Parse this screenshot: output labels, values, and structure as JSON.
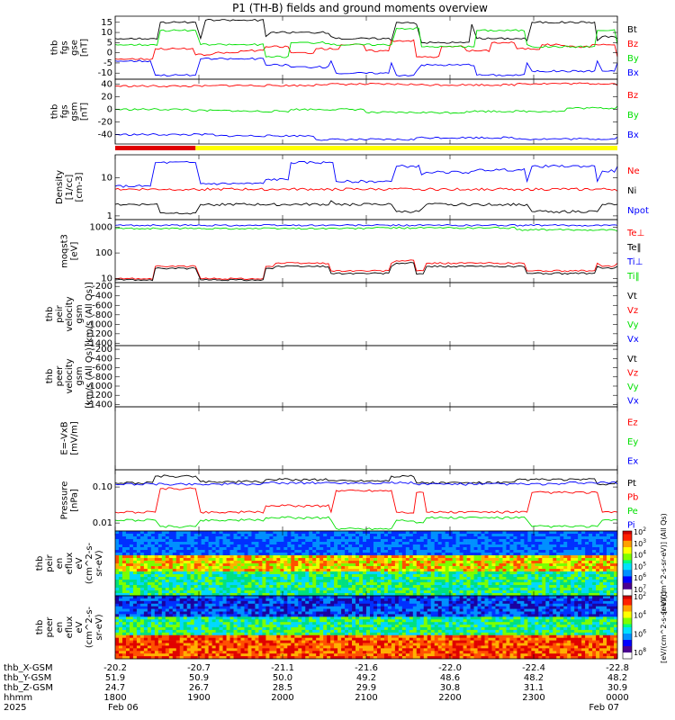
{
  "title": "P1 (TH-B) fields and ground moments overview",
  "colors": {
    "black": "#000000",
    "red": "#ff0000",
    "green": "#00e000",
    "blue": "#0000ff"
  },
  "chart_data": [
    {
      "type": "line",
      "ylabel": [
        "thb",
        "fgs",
        "gse",
        "[nT]"
      ],
      "yticks": [
        "15",
        "10",
        "5",
        "0",
        "-5",
        "-10"
      ],
      "ylim": [
        -13,
        18
      ],
      "legend": [
        {
          "text": "Bt",
          "color": "black"
        },
        {
          "text": "Bz",
          "color": "red"
        },
        {
          "text": "By",
          "color": "green"
        },
        {
          "text": "Bx",
          "color": "blue"
        }
      ],
      "series": [
        {
          "name": "Bt",
          "color": "black",
          "x": [
            0,
            0.07,
            0.09,
            0.16,
            0.17,
            0.18,
            0.3,
            0.31,
            0.43,
            0.44,
            0.55,
            0.56,
            0.6,
            0.61,
            0.71,
            0.72,
            0.82,
            0.83,
            0.96,
            0.97,
            1.0
          ],
          "values": [
            7,
            7,
            15,
            15,
            7,
            16,
            8,
            10,
            8,
            7,
            6,
            15,
            14,
            5,
            14,
            7,
            6,
            15,
            6,
            8,
            7
          ]
        },
        {
          "name": "Bz",
          "color": "red",
          "x": [
            0,
            0.08,
            0.16,
            0.2,
            0.25,
            0.3,
            0.35,
            0.4,
            0.45,
            0.5,
            0.55,
            0.6,
            0.65,
            0.7,
            0.75,
            0.8,
            0.85,
            0.9,
            0.95,
            1.0
          ],
          "values": [
            -3,
            2,
            -1,
            0,
            1,
            3,
            0,
            2,
            4,
            1,
            6,
            -2,
            3,
            1,
            5,
            2,
            4,
            3,
            4,
            -2
          ]
        },
        {
          "name": "By",
          "color": "green",
          "x": [
            0,
            0.07,
            0.09,
            0.16,
            0.17,
            0.25,
            0.3,
            0.35,
            0.43,
            0.55,
            0.56,
            0.61,
            0.72,
            0.82,
            0.83,
            0.96,
            1.0
          ],
          "values": [
            4,
            4,
            11,
            11,
            4,
            4,
            -2,
            5,
            4,
            4,
            12,
            3,
            11,
            4,
            3,
            11,
            4
          ]
        },
        {
          "name": "Bx",
          "color": "blue",
          "x": [
            0,
            0.07,
            0.08,
            0.16,
            0.17,
            0.3,
            0.35,
            0.43,
            0.44,
            0.55,
            0.56,
            0.6,
            0.61,
            0.72,
            0.82,
            0.83,
            0.96,
            0.97,
            1.0
          ],
          "values": [
            -4,
            -4,
            -11,
            -11,
            -3,
            -6,
            -7,
            -4,
            -10,
            -5,
            -11,
            -9,
            -6,
            -11,
            -5,
            -9,
            -4,
            -9,
            -5
          ]
        }
      ]
    },
    {
      "type": "line",
      "ylabel": [
        "thb",
        "fgs",
        "gsm",
        "[nT]"
      ],
      "yticks": [
        "40",
        "20",
        "0",
        "-20",
        "-40"
      ],
      "ylim": [
        -55,
        48
      ],
      "legend": [
        {
          "text": "Bz",
          "color": "red"
        },
        {
          "text": "By",
          "color": "green"
        },
        {
          "text": "Bx",
          "color": "blue"
        }
      ],
      "series": [
        {
          "name": "Bz",
          "color": "red",
          "x": [
            0,
            0.2,
            0.4,
            0.6,
            0.8,
            1.0
          ],
          "values": [
            37,
            38,
            40,
            39,
            41,
            38
          ]
        },
        {
          "name": "By",
          "color": "green",
          "x": [
            0,
            0.15,
            0.25,
            0.35,
            0.5,
            0.7,
            0.9,
            1.0
          ],
          "values": [
            0,
            -2,
            -3,
            0,
            -5,
            -3,
            2,
            5
          ]
        },
        {
          "name": "Bx",
          "color": "blue",
          "x": [
            0,
            0.2,
            0.4,
            0.6,
            0.8,
            1.0
          ],
          "values": [
            -40,
            -42,
            -48,
            -45,
            -47,
            -44
          ]
        }
      ]
    },
    {
      "type": "line",
      "ylabel": [
        "Density",
        "[1/cc]",
        "[cm-3]"
      ],
      "yticks": [
        "10",
        "1"
      ],
      "ylog": true,
      "ylim": [
        0.8,
        40
      ],
      "legend": [
        {
          "text": "Ne",
          "color": "red"
        },
        {
          "text": "Ni",
          "color": "black"
        },
        {
          "text": "Npot",
          "color": "blue"
        }
      ],
      "series": [
        {
          "name": "Ni",
          "color": "black",
          "x": [
            0,
            0.07,
            0.09,
            0.16,
            0.17,
            0.43,
            0.44,
            0.55,
            0.56,
            0.61,
            0.62,
            0.82,
            0.83,
            0.96,
            0.97,
            1.0
          ],
          "values": [
            2,
            2,
            1.2,
            1.2,
            2,
            2.5,
            2,
            2,
            1.3,
            1.5,
            2,
            2,
            1.3,
            1.3,
            2,
            2
          ]
        },
        {
          "name": "Ne",
          "color": "red",
          "x": [
            0,
            0.2,
            0.4,
            0.6,
            0.8,
            1.0
          ],
          "values": [
            5,
            5,
            5,
            5,
            5,
            4.5
          ]
        },
        {
          "name": "Npot",
          "color": "blue",
          "x": [
            0,
            0.07,
            0.08,
            0.16,
            0.17,
            0.3,
            0.35,
            0.42,
            0.44,
            0.55,
            0.56,
            0.61,
            0.62,
            0.72,
            0.82,
            0.83,
            0.96,
            0.97,
            1.0
          ],
          "values": [
            6,
            6,
            25,
            25,
            7,
            9,
            25,
            25,
            8,
            8,
            20,
            12,
            14,
            16,
            8,
            20,
            8,
            15,
            20
          ]
        }
      ]
    },
    {
      "type": "line",
      "ylabel": [
        "moqst3",
        "[eV]"
      ],
      "yticks": [
        "1000",
        "100",
        "10"
      ],
      "ylog": true,
      "ylim": [
        7,
        2000
      ],
      "legend": [
        {
          "text": "Te⊥",
          "color": "red"
        },
        {
          "text": "Te‖",
          "color": "black"
        },
        {
          "text": "Ti⊥",
          "color": "blue"
        },
        {
          "text": "Ti‖",
          "color": "green"
        }
      ],
      "series": [
        {
          "name": "Ti⊥",
          "color": "blue",
          "x": [
            0,
            0.5,
            1.0
          ],
          "values": [
            1200,
            1200,
            1200
          ]
        },
        {
          "name": "Ti‖",
          "color": "green",
          "x": [
            0,
            0.5,
            0.8,
            1.0
          ],
          "values": [
            900,
            950,
            800,
            700
          ]
        },
        {
          "name": "Te⊥",
          "color": "red",
          "x": [
            0,
            0.08,
            0.16,
            0.17,
            0.3,
            0.32,
            0.43,
            0.55,
            0.56,
            0.6,
            0.62,
            0.82,
            0.96,
            0.97,
            1.0
          ],
          "values": [
            10,
            30,
            30,
            10,
            30,
            40,
            20,
            40,
            50,
            20,
            40,
            20,
            40,
            30,
            40
          ]
        },
        {
          "name": "Te‖",
          "color": "black",
          "x": [
            0,
            0.08,
            0.16,
            0.17,
            0.3,
            0.32,
            0.43,
            0.55,
            0.56,
            0.6,
            0.62,
            0.82,
            0.96,
            0.97,
            1.0
          ],
          "values": [
            9,
            25,
            25,
            9,
            25,
            30,
            16,
            30,
            40,
            15,
            30,
            16,
            30,
            25,
            30
          ]
        }
      ]
    },
    {
      "type": "line",
      "ylabel": [
        "thb",
        "peir",
        "velocity",
        "gsm",
        "[km/s (All Qs)]"
      ],
      "yticks": [
        "-200",
        "-400",
        "-600",
        "-800",
        "-1000",
        "-1200",
        "-1400"
      ],
      "ylim": [
        -1450,
        -120
      ],
      "legend": [
        {
          "text": "Vt",
          "color": "black"
        },
        {
          "text": "Vz",
          "color": "red"
        },
        {
          "text": "Vy",
          "color": "green"
        },
        {
          "text": "Vx",
          "color": "blue"
        }
      ],
      "series": []
    },
    {
      "type": "line",
      "ylabel": [
        "thb",
        "peer",
        "velocity",
        "gsm",
        "[km/s (All Qs)]"
      ],
      "yticks": [
        "-200",
        "-400",
        "-600",
        "-800",
        "-1000",
        "-1200",
        "-1400"
      ],
      "ylim": [
        -1450,
        -120
      ],
      "legend": [
        {
          "text": "Vt",
          "color": "black"
        },
        {
          "text": "Vz",
          "color": "red"
        },
        {
          "text": "Vy",
          "color": "green"
        },
        {
          "text": "Vx",
          "color": "blue"
        }
      ],
      "series": []
    },
    {
      "type": "line",
      "ylabel": [
        "E=-VxB",
        "[mV/m]"
      ],
      "yticks": [],
      "legend": [
        {
          "text": "Ez",
          "color": "red"
        },
        {
          "text": "Ey",
          "color": "green"
        },
        {
          "text": "Ex",
          "color": "blue"
        }
      ],
      "series": []
    },
    {
      "type": "line",
      "ylabel": [
        "Pressure",
        "[nPa]"
      ],
      "yticks": [
        "0.10",
        "0.01"
      ],
      "ylog": true,
      "ylim": [
        0.006,
        0.3
      ],
      "legend": [
        {
          "text": "Pt",
          "color": "black"
        },
        {
          "text": "Pb",
          "color": "red"
        },
        {
          "text": "Pe",
          "color": "green"
        },
        {
          "text": "Pi",
          "color": "blue"
        }
      ],
      "series": [
        {
          "name": "Pt",
          "color": "black",
          "x": [
            0,
            0.08,
            0.16,
            0.17,
            0.3,
            0.43,
            0.55,
            0.6,
            0.8,
            0.96,
            1.0
          ],
          "values": [
            0.13,
            0.2,
            0.2,
            0.14,
            0.16,
            0.15,
            0.2,
            0.13,
            0.16,
            0.12,
            0.15
          ]
        },
        {
          "name": "Pi",
          "color": "blue",
          "x": [
            0,
            0.3,
            0.6,
            0.9,
            1.0
          ],
          "values": [
            0.12,
            0.13,
            0.12,
            0.13,
            0.12
          ]
        },
        {
          "name": "Pb",
          "color": "red",
          "x": [
            0,
            0.08,
            0.09,
            0.16,
            0.17,
            0.3,
            0.43,
            0.44,
            0.55,
            0.56,
            0.6,
            0.62,
            0.82,
            0.83,
            0.96,
            0.97,
            1.0
          ],
          "values": [
            0.02,
            0.02,
            0.09,
            0.09,
            0.02,
            0.03,
            0.02,
            0.08,
            0.08,
            0.02,
            0.07,
            0.02,
            0.02,
            0.07,
            0.07,
            0.02,
            0.02
          ]
        },
        {
          "name": "Pe",
          "color": "green",
          "x": [
            0,
            0.08,
            0.09,
            0.16,
            0.17,
            0.3,
            0.43,
            0.44,
            0.55,
            0.56,
            0.6,
            0.62,
            0.82,
            0.83,
            0.96,
            0.97,
            1.0
          ],
          "values": [
            0.012,
            0.012,
            0.008,
            0.008,
            0.012,
            0.014,
            0.012,
            0.007,
            0.007,
            0.012,
            0.01,
            0.014,
            0.012,
            0.008,
            0.008,
            0.012,
            0.012
          ]
        }
      ]
    },
    {
      "type": "heatmap",
      "ylabel": [
        "thb",
        "peir",
        "en",
        "eflux",
        "eV",
        "(cm^2-s-",
        "sr-eV)"
      ],
      "yticks": [
        "10000",
        "1000",
        "100",
        "10"
      ],
      "colorbar": {
        "ticks": [
          "10^7",
          "10^6",
          "10^5",
          "10^4",
          "10^3",
          "10^2"
        ],
        "label": "[eV/(cm^2-s-sr-eV)] (All Qs)"
      }
    },
    {
      "type": "heatmap",
      "ylabel": [
        "thb",
        "peer",
        "en",
        "eflux",
        "eV",
        "(cm^2-s-",
        "sr-eV)"
      ],
      "yticks": [
        "10000",
        "1000",
        "100",
        "10"
      ],
      "colorbar": {
        "ticks": [
          "10^8",
          "10^6",
          "10^4",
          "10^2"
        ],
        "label": "[eV/(cm^2-s-sr-eV)]"
      }
    }
  ],
  "quality_bar": {
    "red_until": 0.16,
    "yellow_from": 0.16
  },
  "ephemeris": {
    "rows": [
      {
        "label": "thb_X-GSM",
        "values": [
          "-20.2",
          "-20.7",
          "-21.1",
          "-21.6",
          "-22.0",
          "-22.4",
          "-22.8"
        ]
      },
      {
        "label": "thb_Y-GSM",
        "values": [
          "51.9",
          "50.9",
          "50.0",
          "49.2",
          "48.6",
          "48.2",
          "48.2"
        ]
      },
      {
        "label": "thb_Z-GSM",
        "values": [
          "24.7",
          "26.7",
          "28.5",
          "29.9",
          "30.8",
          "31.1",
          "30.9"
        ]
      },
      {
        "label": "hhmm",
        "values": [
          "1800",
          "1900",
          "2000",
          "2100",
          "2200",
          "2300",
          "0000"
        ]
      }
    ],
    "year": "2025",
    "date_start": "Feb 06",
    "date_end": "Feb 07"
  }
}
